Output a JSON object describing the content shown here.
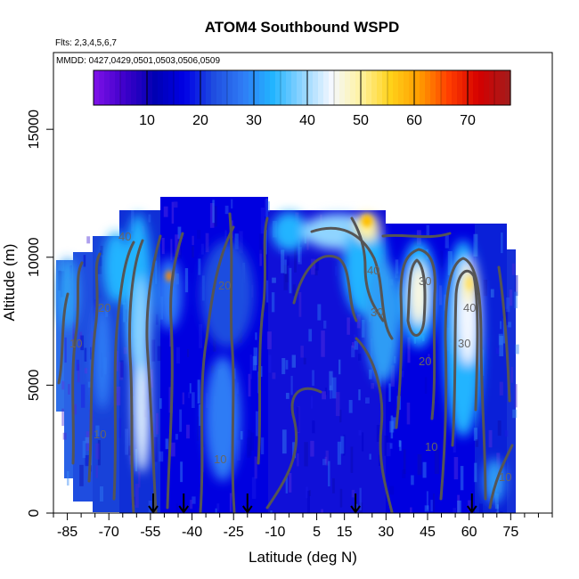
{
  "chart_data": {
    "type": "heatmap",
    "title": "ATOM4 Southbound WSPD",
    "subtitle_flights": "Flts: 2,3,4,5,6,7",
    "subtitle_dates": "MMDD: 0427,0429,0501,0503,0506,0509",
    "xlabel": "Latitude (deg N)",
    "ylabel": "Altitude (m)",
    "xlim": [
      -90,
      90
    ],
    "ylim": [
      0,
      18000
    ],
    "x_ticks": [
      -85,
      -70,
      -55,
      -40,
      -25,
      -10,
      5,
      15,
      30,
      45,
      60,
      75
    ],
    "x_minor_ticks": [
      -90,
      -80,
      -75,
      -65,
      -60,
      -50,
      -45,
      -35,
      -30,
      -20,
      -15,
      -5,
      0,
      10,
      20,
      25,
      35,
      40,
      50,
      55,
      65,
      70,
      80,
      85,
      90
    ],
    "y_ticks": [
      0,
      5000,
      10000,
      15000
    ],
    "colorbar": {
      "range": [
        0,
        78
      ],
      "ticks": [
        10,
        20,
        30,
        40,
        50,
        60,
        70
      ],
      "colors": [
        "#7a10e6",
        "#3b00c9",
        "#0000b3",
        "#0000e6",
        "#1f4de0",
        "#2f7cf5",
        "#22b4ff",
        "#8fd4ff",
        "#f4f8ff",
        "#fff2a0",
        "#ffd21a",
        "#ff9c00",
        "#ff3d00",
        "#d50000",
        "#a61a1a"
      ]
    },
    "contour_levels": [
      10,
      20,
      30,
      40
    ],
    "arrow_latitudes": [
      -54,
      -43,
      -20,
      19,
      61
    ]
  }
}
